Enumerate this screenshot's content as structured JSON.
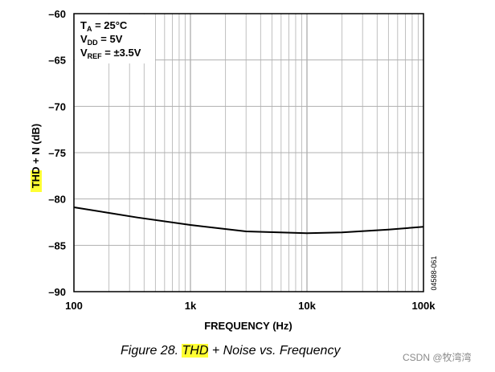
{
  "chart_data": {
    "type": "line",
    "xscale": "log",
    "xlim": [
      100,
      100000
    ],
    "ylim": [
      -90,
      -60
    ],
    "grid": true,
    "xlabel": "FREQUENCY (Hz)",
    "ylabel": "THD + N (dB)",
    "ylabel_highlight": "THD",
    "ylabel_rest": " + N (dB)",
    "x_ticks": [
      {
        "value": 100,
        "label": "100"
      },
      {
        "value": 1000,
        "label": "1k"
      },
      {
        "value": 10000,
        "label": "10k"
      },
      {
        "value": 100000,
        "label": "100k"
      }
    ],
    "y_ticks": [
      {
        "value": -60,
        "label": "–60"
      },
      {
        "value": -65,
        "label": "–65"
      },
      {
        "value": -70,
        "label": "–70"
      },
      {
        "value": -75,
        "label": "–75"
      },
      {
        "value": -80,
        "label": "–80"
      },
      {
        "value": -85,
        "label": "–85"
      },
      {
        "value": -90,
        "label": "–90"
      }
    ],
    "series": [
      {
        "color": "#000000",
        "x": [
          100,
          200,
          350,
          1000,
          3000,
          10000,
          20000,
          50000,
          100000
        ],
        "y": [
          -80.9,
          -81.5,
          -82.0,
          -82.8,
          -83.5,
          -83.7,
          -83.6,
          -83.3,
          -83.0
        ]
      }
    ],
    "conditions": [
      {
        "main": "T",
        "sub": "A",
        "rest": " = 25°C"
      },
      {
        "main": "V",
        "sub": "DD",
        "rest": " = 5V"
      },
      {
        "main": "V",
        "sub": "REF",
        "rest": " = ±3.5V"
      }
    ],
    "doc_number": "04588-061"
  },
  "caption": {
    "prefix": "Figure 28. ",
    "highlight": "THD",
    "suffix": " + Noise vs. Frequency"
  },
  "watermark": "CSDN @牧湾湾"
}
